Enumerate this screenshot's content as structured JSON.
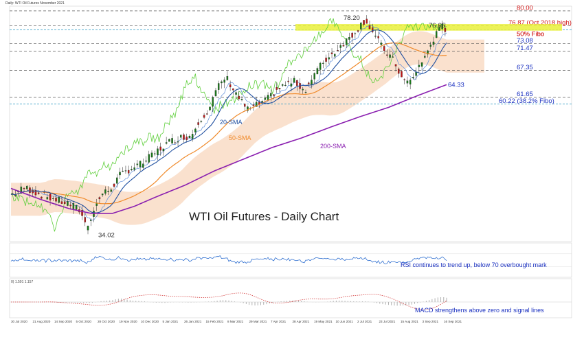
{
  "header": {
    "chart_info": "Daily: WTI Oil Futures November 2021"
  },
  "main": {
    "title": "WTI Oil Futures - Daily Chart"
  },
  "colors": {
    "up": "#1a7a1a",
    "down": "#c01818",
    "sma20": "#1f4fa0",
    "sma50": "#f08a2a",
    "sma200": "#8a1fb0",
    "ichimoku_green": "#5ecf3a",
    "ichimoku_blue": "#5a8ad8",
    "cloud": "#f5c8a6",
    "level_red": "#d01818",
    "level_blue": "#1a30c0",
    "fib_line": "#3aa0c8",
    "highlight": "#e9f03a",
    "rsi": "#2f6fd0",
    "macd": "#d43a3a",
    "macd_hist": "#b0b0b0"
  },
  "chart_data": [
    {
      "type": "candlestick",
      "title": "WTI Oil Futures - Daily Chart",
      "x": [
        "30 Jul 2020",
        "21 Aug 2020",
        "14 Sep 2020",
        "5 Oct 2020",
        "28 Oct 2020",
        "19 Nov 2020",
        "10 Dec 2020",
        "5 Jan 2021",
        "26 Jan 2021",
        "15 Feb 2021",
        "8 Mar 2021",
        "29 Mar 2021",
        "7 Apr 2021",
        "28 Apr 2021",
        "19 May 2021",
        "10 Jun 2021",
        "2 Jul 2021",
        "23 Jul 2021",
        "15 Aug 2021",
        "3 Sep 2021",
        "16 Sep 2021"
      ],
      "ylim": [
        31,
        81
      ],
      "close_path": [
        [
          0,
          41
        ],
        [
          10,
          42.5
        ],
        [
          20,
          41
        ],
        [
          30,
          40
        ],
        [
          40,
          39
        ],
        [
          48,
          37.5
        ],
        [
          52,
          34.02
        ],
        [
          56,
          37
        ],
        [
          62,
          41
        ],
        [
          68,
          42
        ],
        [
          75,
          45
        ],
        [
          82,
          46.5
        ],
        [
          90,
          47.5
        ],
        [
          100,
          50
        ],
        [
          108,
          52
        ],
        [
          115,
          53
        ],
        [
          124,
          53.5
        ],
        [
          130,
          57
        ],
        [
          136,
          59
        ],
        [
          142,
          63.5
        ],
        [
          148,
          66
        ],
        [
          152,
          64
        ],
        [
          158,
          61
        ],
        [
          163,
          59
        ],
        [
          170,
          60
        ],
        [
          176,
          61
        ],
        [
          182,
          63
        ],
        [
          190,
          64.5
        ],
        [
          196,
          65
        ],
        [
          202,
          63
        ],
        [
          210,
          67
        ],
        [
          216,
          69.5
        ],
        [
          222,
          71
        ],
        [
          228,
          73
        ],
        [
          232,
          74
        ],
        [
          238,
          76
        ],
        [
          244,
          78.2
        ],
        [
          250,
          75
        ],
        [
          256,
          72
        ],
        [
          262,
          70
        ],
        [
          266,
          68
        ],
        [
          270,
          65
        ],
        [
          276,
          65
        ],
        [
          280,
          68
        ],
        [
          285,
          70
        ],
        [
          289,
          73
        ],
        [
          293,
          75
        ],
        [
          297,
          76.65
        ],
        [
          300,
          76
        ]
      ],
      "levels": [
        {
          "value": 80.0,
          "label": "80.00",
          "color": "#d01818",
          "style": "dash"
        },
        {
          "value": 76.87,
          "label": "76.87 (Oct.2018 high)",
          "color": "#d01818",
          "style": "dash"
        },
        {
          "value": 76.0,
          "label": "50% Fibo",
          "color": "#d01818",
          "style": "fibo"
        },
        {
          "value": 73.08,
          "label": "73.08",
          "color": "#1a30c0",
          "style": "dash"
        },
        {
          "value": 71.47,
          "label": "71.47",
          "color": "#1a30c0",
          "style": "dash"
        },
        {
          "value": 67.35,
          "label": "67.35",
          "color": "#1a30c0",
          "style": "dash"
        },
        {
          "value": 61.65,
          "label": "61.65",
          "color": "#1a30c0",
          "style": "dash"
        },
        {
          "value": 60.22,
          "label": "60.22 (38.2% Fibo)",
          "color": "#1a30c0",
          "style": "fibo"
        }
      ],
      "annotations": [
        {
          "label": "78.20",
          "value": 78.2
        },
        {
          "label": "76.65",
          "value": 76.65
        },
        {
          "label": "34.02",
          "value": 34.02
        },
        {
          "label": "64.33",
          "value": 64.33
        },
        {
          "label": "20-SMA",
          "series": "sma20"
        },
        {
          "label": "50-SMA",
          "series": "sma50"
        },
        {
          "label": "200-SMA",
          "series": "sma200"
        }
      ],
      "sma200_path": [
        [
          0,
          42.3
        ],
        [
          20,
          40
        ],
        [
          40,
          38
        ],
        [
          55,
          37
        ],
        [
          70,
          37
        ],
        [
          85,
          38.5
        ],
        [
          100,
          40.5
        ],
        [
          120,
          43
        ],
        [
          140,
          46
        ],
        [
          160,
          48.5
        ],
        [
          180,
          51
        ],
        [
          200,
          53
        ],
        [
          220,
          55.3
        ],
        [
          240,
          57.5
        ],
        [
          260,
          59.5
        ],
        [
          280,
          62
        ],
        [
          300,
          64.33
        ]
      ]
    },
    {
      "type": "line",
      "name": "RSI",
      "annotation": "RSI continues to trend up, below 70 overbought mark"
    },
    {
      "type": "line",
      "name": "MACD",
      "header": "0) 1.591 1.157",
      "annotation": "MACD strengthens above zero and signal lines"
    }
  ]
}
